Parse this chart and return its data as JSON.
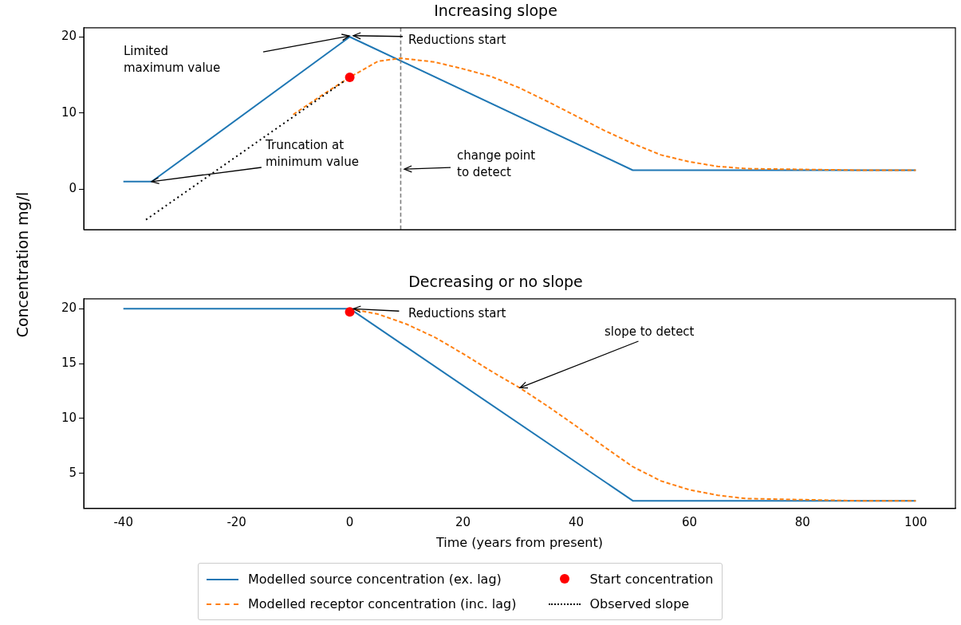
{
  "chart_data": [
    {
      "type": "line",
      "title": "Increasing slope",
      "ylabel": "Concentration mg/l",
      "xlim": [
        -47,
        107
      ],
      "xticks": [
        -40,
        -20,
        0,
        20,
        40,
        60,
        80,
        100
      ],
      "ylim": [
        -5.3,
        21.2
      ],
      "yticks": [
        0,
        10,
        20
      ],
      "tick_labels": "y",
      "grid": false,
      "legend": "bottom",
      "series": [
        {
          "name": "Modelled source concentration (ex. lag)",
          "color": "#1f77b4",
          "line_style": "solid",
          "x": [
            -40,
            -35,
            0,
            50,
            100
          ],
          "values": [
            1,
            1,
            20,
            2.5,
            2.5
          ]
        },
        {
          "name": "Modelled receptor concentration (inc. lag)",
          "color": "#ff7f0e",
          "line_style": "dashed",
          "x": [
            -10,
            -5,
            0,
            5,
            9,
            15,
            20,
            25,
            30,
            35,
            40,
            45,
            50,
            55,
            60,
            65,
            70,
            80,
            90,
            100
          ],
          "values": [
            9.8,
            12.3,
            14.7,
            16.8,
            17.2,
            16.7,
            15.8,
            14.8,
            13.3,
            11.5,
            9.6,
            7.7,
            6.0,
            4.5,
            3.6,
            3.0,
            2.7,
            2.6,
            2.5,
            2.5
          ]
        },
        {
          "name": "Start concentration",
          "type": "scatter",
          "marker": "circle",
          "color": "#ff0000",
          "x": [
            0
          ],
          "values": [
            14.7
          ]
        },
        {
          "name": "Observed slope",
          "color": "#000000",
          "line_style": "dotted",
          "x": [
            -36,
            0
          ],
          "values": [
            -4,
            14.7
          ]
        }
      ],
      "ref_lines": [
        {
          "axis": "x",
          "value": 9,
          "color": "#7f7f7f",
          "line_style": "dashed"
        }
      ],
      "annotations": [
        "Limited\nmaximum value",
        "Reductions start",
        {
          "text": "Truncation at\nminimum value",
          "x": -35,
          "y": 1
        },
        "change point\nto detect"
      ]
    },
    {
      "type": "line",
      "title": "Decreasing or no slope",
      "xlabel": "Time (years from present)",
      "xlim": [
        -47,
        107
      ],
      "xticks": [
        -40,
        -20,
        0,
        20,
        40,
        60,
        80,
        100
      ],
      "ylim": [
        1.8,
        20.9
      ],
      "yticks": [
        5,
        10,
        15,
        20
      ],
      "grid": false,
      "series": [
        {
          "color": "#1f77b4",
          "line_style": "solid",
          "x": [
            -40,
            0,
            50,
            100
          ],
          "values": [
            20,
            20,
            2.5,
            2.5
          ]
        },
        {
          "color": "#ff7f0e",
          "line_style": "dashed",
          "x": [
            0,
            5,
            10,
            15,
            20,
            25,
            30,
            35,
            40,
            45,
            50,
            55,
            60,
            65,
            70,
            80,
            90,
            100
          ],
          "values": [
            20,
            19.5,
            18.6,
            17.4,
            15.9,
            14.3,
            12.8,
            11.1,
            9.3,
            7.4,
            5.6,
            4.3,
            3.5,
            3.0,
            2.7,
            2.6,
            2.5,
            2.5
          ]
        },
        {
          "type": "scatter",
          "marker": "circle",
          "color": "#ff0000",
          "x": [
            0
          ],
          "values": [
            19.7
          ]
        }
      ],
      "annotations": [
        {
          "text": "Reductions start",
          "x": 0,
          "y": 20
        },
        {
          "text": "slope to detect",
          "x": 30,
          "y": 12.8
        }
      ]
    }
  ]
}
